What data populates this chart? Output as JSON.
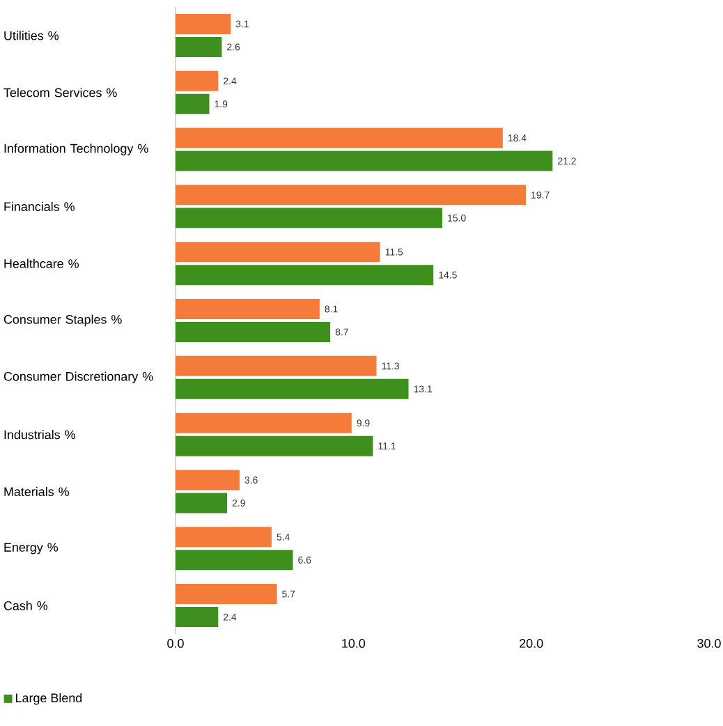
{
  "chart_data": {
    "type": "bar",
    "orientation": "horizontal",
    "categories": [
      "Utilities %",
      "Telecom Services %",
      "Information Technology %",
      "Financials %",
      "Healthcare %",
      "Consumer Staples %",
      "Consumer Discretionary %",
      "Industrials %",
      "Materials %",
      "Energy %",
      "Cash %"
    ],
    "series": [
      {
        "color": "#f47b3a",
        "values": [
          3.1,
          2.4,
          18.4,
          19.7,
          11.5,
          8.1,
          11.3,
          9.9,
          3.6,
          5.4,
          5.7
        ],
        "value_labels": [
          "3.1",
          "2.4",
          "18.4",
          "19.7",
          "11.5",
          "8.1",
          "11.3",
          "9.9",
          "3.6",
          "5.4",
          "5.7"
        ]
      },
      {
        "name": "Large Blend",
        "color": "#3f8f1f",
        "values": [
          2.6,
          1.9,
          21.2,
          15.0,
          14.5,
          8.7,
          13.1,
          11.1,
          2.9,
          6.6,
          2.4
        ],
        "value_labels": [
          "2.6",
          "1.9",
          "21.2",
          "15.0",
          "14.5",
          "8.7",
          "13.1",
          "11.1",
          "2.9",
          "6.6",
          "2.4"
        ]
      }
    ],
    "xlim": [
      0,
      30
    ],
    "xticks": [
      {
        "value": 0,
        "label": "0.0"
      },
      {
        "value": 10,
        "label": "10.0"
      },
      {
        "value": 20,
        "label": "20.0"
      },
      {
        "value": 30,
        "label": "30.0"
      }
    ],
    "grid": false,
    "legend": "bottom"
  }
}
